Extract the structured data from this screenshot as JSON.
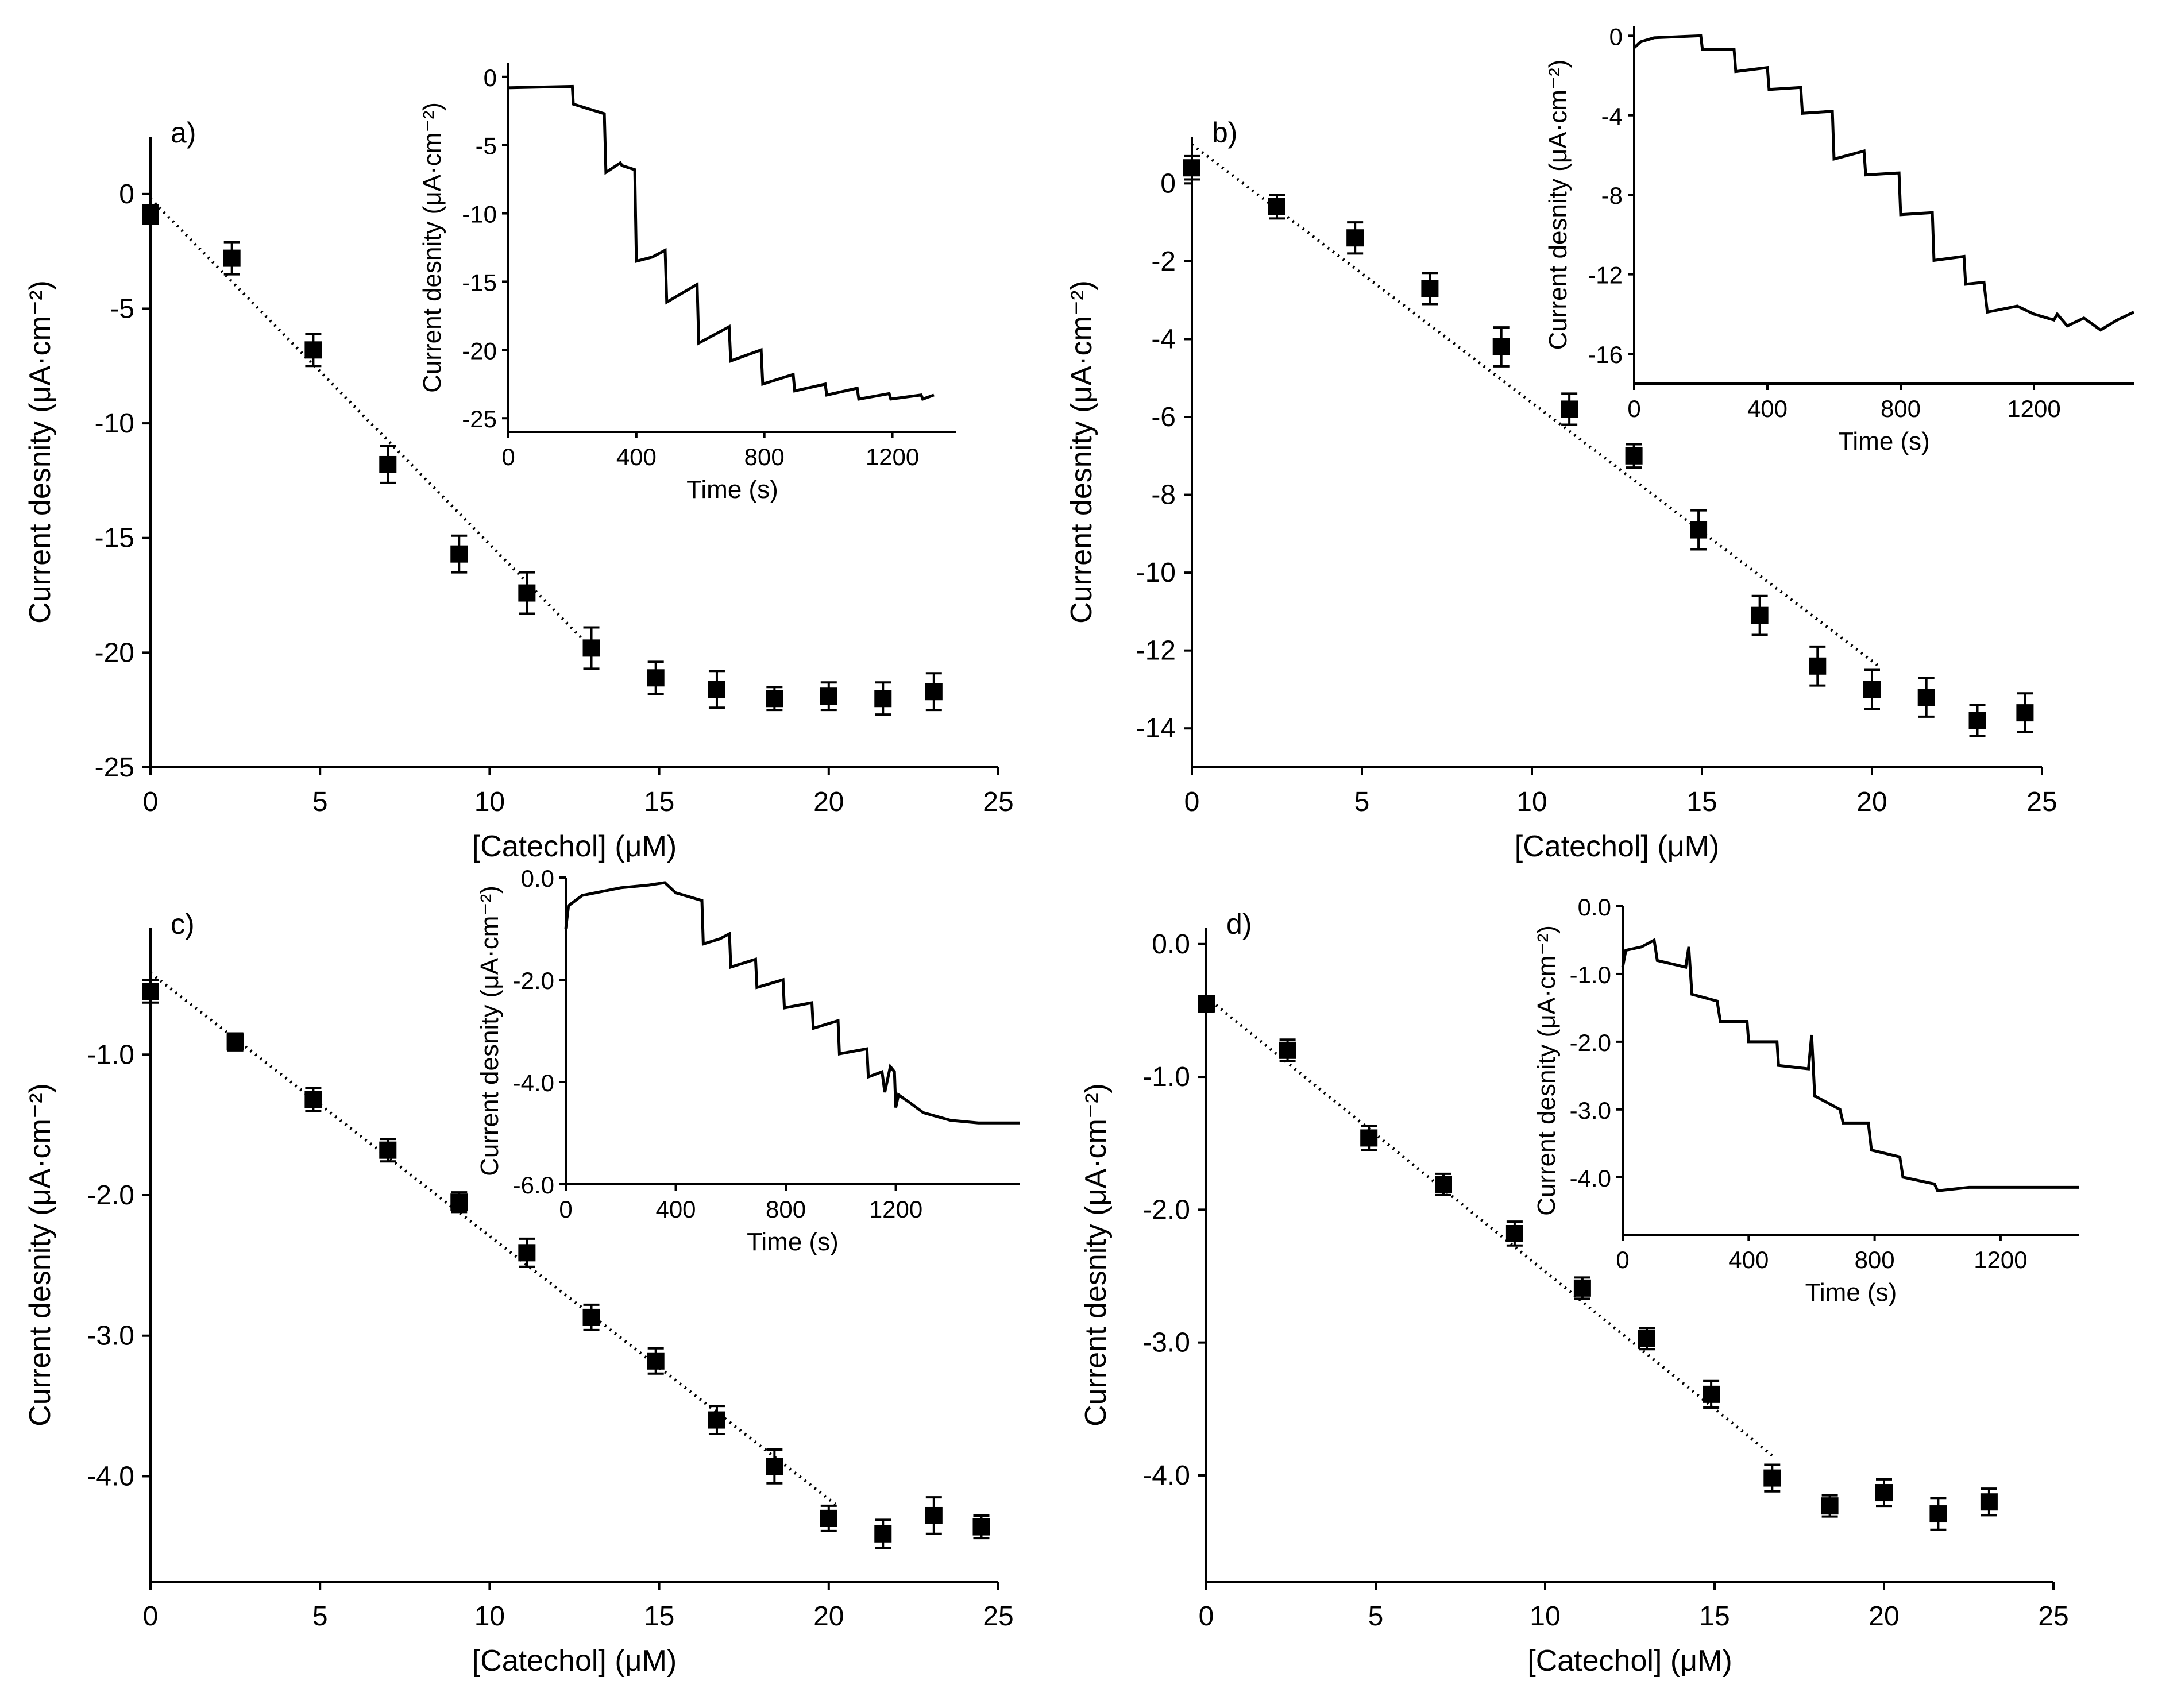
{
  "chart_data": [
    {
      "type": "scatter",
      "panel_label": "a)",
      "xlabel": "[Catechol] (μM)",
      "ylabel": "Current desnity (μA·cm⁻²)",
      "xlim": [
        0,
        25
      ],
      "ylim": [
        -25,
        2.5
      ],
      "xticks": [
        "0",
        "5",
        "10",
        "15",
        "20",
        "25"
      ],
      "yticks": [
        "0",
        "-5",
        "-10",
        "-15",
        "-20",
        "-25"
      ],
      "series": [
        {
          "name": "data",
          "x": [
            0,
            2.4,
            4.8,
            7.0,
            9.1,
            11.1,
            13.0,
            14.9,
            16.7,
            18.4,
            20.0,
            21.6,
            23.1
          ],
          "y": [
            -0.9,
            -2.8,
            -6.8,
            -11.8,
            -15.7,
            -17.4,
            -19.8,
            -21.1,
            -21.6,
            -22.0,
            -21.9,
            -22.0,
            -21.7
          ],
          "err": [
            0.4,
            0.7,
            0.7,
            0.8,
            0.8,
            0.9,
            0.9,
            0.7,
            0.8,
            0.5,
            0.6,
            0.7,
            0.8
          ]
        }
      ],
      "fit_line": {
        "x": [
          0,
          13.0
        ],
        "y": [
          -0.2,
          -19.8
        ]
      },
      "inset": {
        "xlabel": "Time (s)",
        "ylabel": "Current desnity (μA·cm⁻²)",
        "xlim": [
          0,
          1400
        ],
        "ylim": [
          -26,
          1
        ],
        "xticks": [
          "0",
          "400",
          "800",
          "1200"
        ],
        "yticks": [
          "0",
          "-5",
          "-10",
          "-15",
          "-20",
          "-25"
        ],
        "trace": [
          [
            0,
            -0.8
          ],
          [
            200,
            -0.7
          ],
          [
            203,
            -2.0
          ],
          [
            300,
            -2.7
          ],
          [
            305,
            -7.0
          ],
          [
            350,
            -6.3
          ],
          [
            355,
            -6.5
          ],
          [
            395,
            -6.8
          ],
          [
            400,
            -13.5
          ],
          [
            450,
            -13.2
          ],
          [
            490,
            -12.7
          ],
          [
            495,
            -16.5
          ],
          [
            590,
            -15.2
          ],
          [
            595,
            -19.5
          ],
          [
            690,
            -18.3
          ],
          [
            695,
            -20.8
          ],
          [
            790,
            -20.0
          ],
          [
            795,
            -22.5
          ],
          [
            890,
            -21.8
          ],
          [
            895,
            -23.0
          ],
          [
            990,
            -22.5
          ],
          [
            995,
            -23.3
          ],
          [
            1090,
            -22.8
          ],
          [
            1095,
            -23.6
          ],
          [
            1190,
            -23.2
          ],
          [
            1195,
            -23.6
          ],
          [
            1290,
            -23.3
          ],
          [
            1295,
            -23.6
          ],
          [
            1330,
            -23.3
          ]
        ]
      }
    },
    {
      "type": "scatter",
      "panel_label": "b)",
      "xlabel": "[Catechol] (μM)",
      "ylabel": "Current desnity (μA·cm⁻²)",
      "xlim": [
        0,
        25
      ],
      "ylim": [
        -15,
        1.2
      ],
      "xticks": [
        "0",
        "5",
        "10",
        "15",
        "20",
        "25"
      ],
      "yticks": [
        "0",
        "-2",
        "-4",
        "-6",
        "-8",
        "-10",
        "-12",
        "-14"
      ],
      "series": [
        {
          "name": "data",
          "x": [
            0,
            2.5,
            4.8,
            7.0,
            9.1,
            11.1,
            13.0,
            14.9,
            16.7,
            18.4,
            20.0,
            21.6,
            23.1,
            24.5
          ],
          "y": [
            0.4,
            -0.6,
            -1.4,
            -2.7,
            -4.2,
            -5.8,
            -7.0,
            -8.9,
            -11.1,
            -12.4,
            -13.0,
            -13.2,
            -13.8,
            -13.6
          ],
          "err": [
            0.3,
            0.3,
            0.4,
            0.4,
            0.5,
            0.4,
            0.3,
            0.5,
            0.5,
            0.5,
            0.5,
            0.5,
            0.4,
            0.5
          ]
        }
      ],
      "fit_line": {
        "x": [
          0,
          20.2
        ],
        "y": [
          1.0,
          -12.4
        ]
      },
      "inset": {
        "xlabel": "Time (s)",
        "ylabel": "Current desnity (μA·cm⁻²)",
        "xlim": [
          0,
          1500
        ],
        "ylim": [
          -17.5,
          0.5
        ],
        "xticks": [
          "0",
          "400",
          "800",
          "1200"
        ],
        "yticks": [
          "0",
          "-4",
          "-8",
          "-12",
          "-16"
        ],
        "trace": [
          [
            0,
            -0.6
          ],
          [
            20,
            -0.3
          ],
          [
            60,
            -0.1
          ],
          [
            200,
            0
          ],
          [
            205,
            -0.7
          ],
          [
            300,
            -0.7
          ],
          [
            305,
            -1.8
          ],
          [
            400,
            -1.6
          ],
          [
            405,
            -2.7
          ],
          [
            500,
            -2.6
          ],
          [
            505,
            -3.9
          ],
          [
            595,
            -3.8
          ],
          [
            600,
            -6.2
          ],
          [
            690,
            -5.8
          ],
          [
            695,
            -7.0
          ],
          [
            795,
            -6.9
          ],
          [
            800,
            -9.0
          ],
          [
            895,
            -8.9
          ],
          [
            900,
            -11.3
          ],
          [
            990,
            -11.1
          ],
          [
            995,
            -12.5
          ],
          [
            1050,
            -12.4
          ],
          [
            1060,
            -13.9
          ],
          [
            1150,
            -13.6
          ],
          [
            1200,
            -14.0
          ],
          [
            1260,
            -14.3
          ],
          [
            1270,
            -14.0
          ],
          [
            1300,
            -14.6
          ],
          [
            1350,
            -14.2
          ],
          [
            1400,
            -14.8
          ],
          [
            1450,
            -14.3
          ],
          [
            1500,
            -13.9
          ]
        ]
      }
    },
    {
      "type": "scatter",
      "panel_label": "c)",
      "xlabel": "[Catechol] (μM)",
      "ylabel": "Current desnity (μA·cm⁻²)",
      "xlim": [
        0,
        25
      ],
      "ylim": [
        -4.75,
        -0.1
      ],
      "xticks": [
        "0",
        "5",
        "10",
        "15",
        "20",
        "25"
      ],
      "yticks": [
        "-1.0",
        "-2.0",
        "-3.0",
        "-4.0"
      ],
      "series": [
        {
          "name": "data",
          "x": [
            0,
            2.5,
            4.8,
            7.0,
            9.1,
            11.1,
            13.0,
            14.9,
            16.7,
            18.4,
            20.0,
            21.6,
            23.1,
            24.5
          ],
          "y": [
            -0.55,
            -0.91,
            -1.32,
            -1.68,
            -2.05,
            -2.41,
            -2.87,
            -3.18,
            -3.6,
            -3.93,
            -4.3,
            -4.41,
            -4.28,
            -4.36
          ],
          "err": [
            0.08,
            0.06,
            0.08,
            0.08,
            0.07,
            0.1,
            0.09,
            0.09,
            0.1,
            0.12,
            0.09,
            0.1,
            0.13,
            0.08
          ]
        }
      ],
      "fit_line": {
        "x": [
          0,
          20.2
        ],
        "y": [
          -0.42,
          -4.2
        ]
      },
      "inset": {
        "xlabel": "Time (s)",
        "ylabel": "Current desnity (μA·cm⁻²)",
        "xlim": [
          0,
          1650
        ],
        "ylim": [
          -6,
          0
        ],
        "xticks": [
          "0",
          "400",
          "800",
          "1200"
        ],
        "yticks": [
          "0.0",
          "-2.0",
          "-4.0",
          "-6.0"
        ],
        "trace": [
          [
            0,
            -1.0
          ],
          [
            10,
            -0.55
          ],
          [
            60,
            -0.35
          ],
          [
            200,
            -0.2
          ],
          [
            300,
            -0.15
          ],
          [
            360,
            -0.1
          ],
          [
            400,
            -0.3
          ],
          [
            495,
            -0.45
          ],
          [
            500,
            -1.3
          ],
          [
            560,
            -1.2
          ],
          [
            595,
            -1.1
          ],
          [
            600,
            -1.75
          ],
          [
            690,
            -1.6
          ],
          [
            695,
            -2.15
          ],
          [
            790,
            -2.0
          ],
          [
            795,
            -2.55
          ],
          [
            895,
            -2.45
          ],
          [
            900,
            -2.95
          ],
          [
            990,
            -2.8
          ],
          [
            995,
            -3.45
          ],
          [
            1095,
            -3.35
          ],
          [
            1100,
            -3.9
          ],
          [
            1150,
            -3.8
          ],
          [
            1160,
            -4.2
          ],
          [
            1180,
            -3.7
          ],
          [
            1195,
            -3.8
          ],
          [
            1200,
            -4.5
          ],
          [
            1210,
            -4.25
          ],
          [
            1250,
            -4.4
          ],
          [
            1300,
            -4.6
          ],
          [
            1400,
            -4.75
          ],
          [
            1500,
            -4.8
          ],
          [
            1650,
            -4.8
          ]
        ]
      }
    },
    {
      "type": "scatter",
      "panel_label": "d)",
      "xlabel": "[Catechol] (μM)",
      "ylabel": "Current desnity (μA·cm⁻²)",
      "xlim": [
        0,
        25
      ],
      "ylim": [
        -4.8,
        0.12
      ],
      "xticks": [
        "0",
        "5",
        "10",
        "15",
        "20",
        "25"
      ],
      "yticks": [
        "0.0",
        "-1.0",
        "-2.0",
        "-3.0",
        "-4.0"
      ],
      "series": [
        {
          "name": "data",
          "x": [
            0,
            2.4,
            4.8,
            7.0,
            9.1,
            11.1,
            13.0,
            14.9,
            16.7,
            18.4,
            20.0,
            21.6,
            23.1
          ],
          "y": [
            -0.45,
            -0.8,
            -1.46,
            -1.81,
            -2.18,
            -2.59,
            -2.97,
            -3.39,
            -4.02,
            -4.23,
            -4.13,
            -4.29,
            -4.2
          ],
          "err": [
            0.06,
            0.08,
            0.09,
            0.08,
            0.09,
            0.08,
            0.08,
            0.1,
            0.1,
            0.08,
            0.1,
            0.12,
            0.1
          ]
        }
      ],
      "fit_line": {
        "x": [
          0,
          16.7
        ],
        "y": [
          -0.4,
          -3.85
        ]
      },
      "inset": {
        "xlabel": "Time (s)",
        "ylabel": "Current desnity (μA·cm⁻²)",
        "xlim": [
          0,
          1450
        ],
        "ylim": [
          -4.85,
          0
        ],
        "xticks": [
          "0",
          "400",
          "800",
          "1200"
        ],
        "yticks": [
          "0.0",
          "-1.0",
          "-2.0",
          "-3.0",
          "-4.0"
        ],
        "trace": [
          [
            0,
            -0.9
          ],
          [
            10,
            -0.65
          ],
          [
            60,
            -0.6
          ],
          [
            100,
            -0.5
          ],
          [
            110,
            -0.8
          ],
          [
            200,
            -0.9
          ],
          [
            210,
            -0.6
          ],
          [
            220,
            -1.3
          ],
          [
            300,
            -1.4
          ],
          [
            310,
            -1.7
          ],
          [
            395,
            -1.7
          ],
          [
            400,
            -2.0
          ],
          [
            490,
            -2.0
          ],
          [
            495,
            -2.35
          ],
          [
            590,
            -2.4
          ],
          [
            600,
            -1.9
          ],
          [
            610,
            -2.8
          ],
          [
            690,
            -3.0
          ],
          [
            700,
            -3.2
          ],
          [
            780,
            -3.2
          ],
          [
            790,
            -3.6
          ],
          [
            880,
            -3.7
          ],
          [
            890,
            -4.0
          ],
          [
            990,
            -4.1
          ],
          [
            1000,
            -4.2
          ],
          [
            1100,
            -4.15
          ],
          [
            1200,
            -4.15
          ],
          [
            1450,
            -4.15
          ]
        ]
      }
    }
  ]
}
